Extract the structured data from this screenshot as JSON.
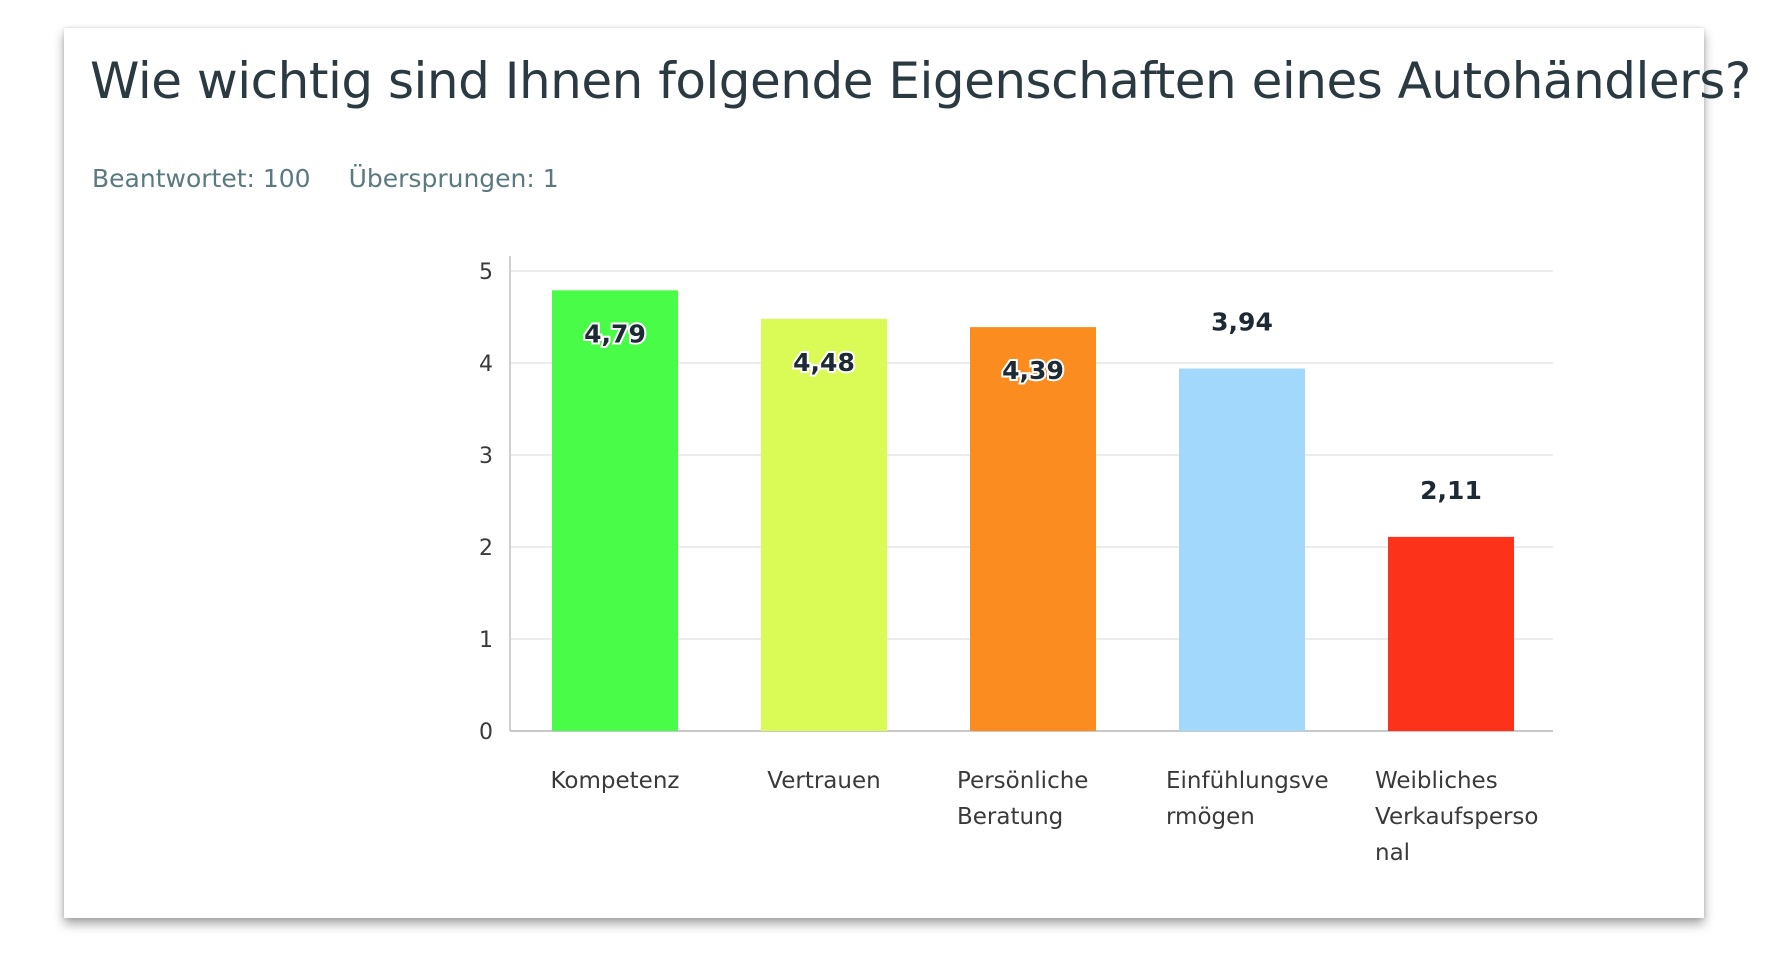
{
  "header": {
    "title": "Wie wichtig sind Ihnen folgende Eigenschaften eines Autohändlers?",
    "answered": "Beantwortet: 100",
    "skipped": "Übersprungen: 1"
  },
  "chart_data": {
    "type": "bar",
    "title": "Wie wichtig sind Ihnen folgende Eigenschaften eines Autohändlers?",
    "xlabel": "",
    "ylabel": "",
    "ylim": [
      0,
      5
    ],
    "yticks": [
      0,
      1,
      2,
      3,
      4,
      5
    ],
    "grid": true,
    "categories": [
      [
        "Kompetenz"
      ],
      [
        "Vertrauen"
      ],
      [
        "Persönliche",
        "Beratung"
      ],
      [
        "Einfühlungsve",
        "rmögen"
      ],
      [
        "Weibliches",
        "Verkaufsperso",
        "nal"
      ]
    ],
    "values": [
      4.79,
      4.48,
      4.39,
      3.94,
      2.11
    ],
    "value_labels": [
      "4,79",
      "4,48",
      "4,39",
      "3,94",
      "2,11"
    ],
    "label_inside": [
      true,
      true,
      true,
      false,
      false
    ],
    "colors": [
      "#48fc48",
      "#dafa55",
      "#fa8c20",
      "#a2d8fc",
      "#fc321a"
    ]
  }
}
